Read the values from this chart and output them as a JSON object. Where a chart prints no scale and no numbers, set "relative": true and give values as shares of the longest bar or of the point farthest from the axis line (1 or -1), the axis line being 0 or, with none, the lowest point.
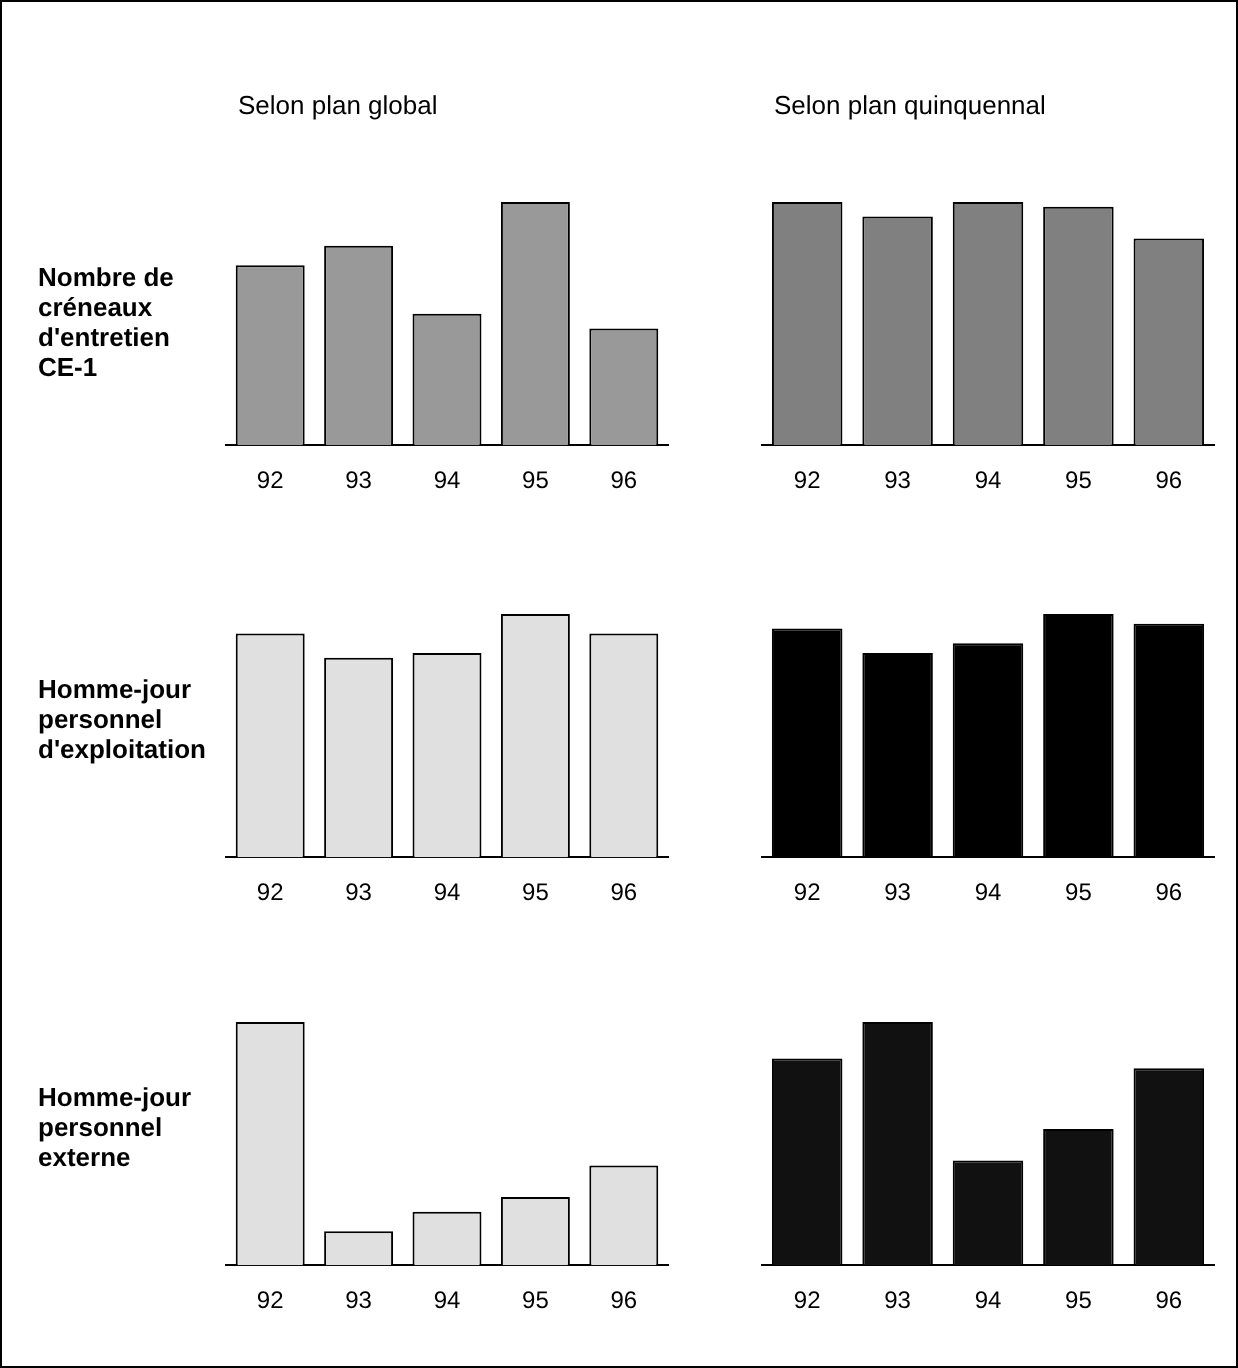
{
  "chart_data": [
    {
      "type": "bar",
      "title": "Selon plan global",
      "ylabel": "Nombre de créneaux d'entretien CE-1",
      "categories": [
        "92",
        "93",
        "94",
        "95",
        "96"
      ],
      "values": [
        0.74,
        0.82,
        0.54,
        1,
        0.48
      ],
      "color": "#999999",
      "relative": true
    },
    {
      "type": "bar",
      "title": "Selon plan quinquennal",
      "categories": [
        "92",
        "93",
        "94",
        "95",
        "96"
      ],
      "values": [
        1,
        0.94,
        1,
        0.98,
        0.85
      ],
      "color": "#808080",
      "relative": true
    },
    {
      "type": "bar",
      "ylabel": "Homme-jour personnel d'exploitation",
      "categories": [
        "92",
        "93",
        "94",
        "95",
        "96"
      ],
      "values": [
        0.92,
        0.82,
        0.84,
        1,
        0.92
      ],
      "color": "#e0e0e0",
      "relative": true
    },
    {
      "type": "bar",
      "categories": [
        "92",
        "93",
        "94",
        "95",
        "96"
      ],
      "values": [
        0.94,
        0.84,
        0.88,
        1,
        0.96
      ],
      "color": "#000000",
      "relative": true
    },
    {
      "type": "bar",
      "ylabel": "Homme-jour personnel externe",
      "categories": [
        "92",
        "93",
        "94",
        "95",
        "96"
      ],
      "values": [
        1,
        0.14,
        0.22,
        0.28,
        0.41
      ],
      "color": "#e0e0e0",
      "relative": true
    },
    {
      "type": "bar",
      "categories": [
        "92",
        "93",
        "94",
        "95",
        "96"
      ],
      "values": [
        0.85,
        1,
        0.43,
        0.56,
        0.81
      ],
      "color": "#111111",
      "relative": true
    }
  ]
}
